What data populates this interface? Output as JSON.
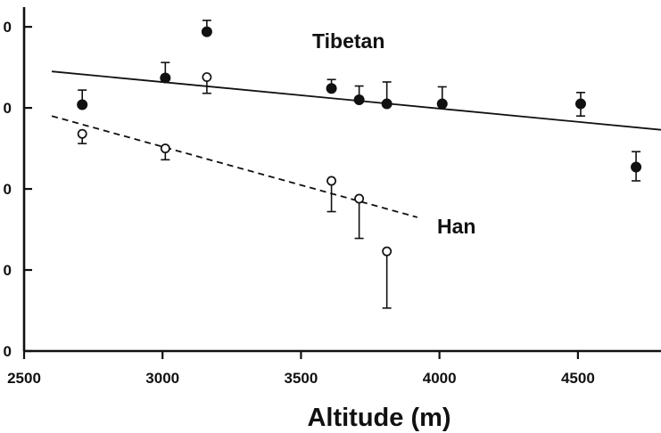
{
  "chart_data": {
    "type": "scatter",
    "title": "",
    "xlabel": "Altitude (m)",
    "ylabel": "",
    "xlim": [
      2500,
      4800
    ],
    "ylim": [
      0,
      4.15
    ],
    "x_ticks": [
      {
        "value": 2500,
        "label": "2500"
      },
      {
        "value": 3000,
        "label": "3000"
      },
      {
        "value": 3500,
        "label": "3500"
      },
      {
        "value": 4000,
        "label": "4000"
      },
      {
        "value": 4500,
        "label": "4500"
      }
    ],
    "y_ticks": [
      {
        "value": 0,
        "label": "0"
      },
      {
        "value": 1,
        "label": "0"
      },
      {
        "value": 2,
        "label": "0"
      },
      {
        "value": 3,
        "label": "0"
      },
      {
        "value": 4,
        "label": "0"
      }
    ],
    "grid": false,
    "series": [
      {
        "name": "Tibetan",
        "marker": "filled-circle",
        "color": "#111111",
        "points": [
          {
            "x": 2710,
            "y": 3.04,
            "err_up": 0.18,
            "err_down": 0
          },
          {
            "x": 3010,
            "y": 3.37,
            "err_up": 0.19,
            "err_down": 0
          },
          {
            "x": 3160,
            "y": 3.94,
            "err_up": 0.14,
            "err_down": 0
          },
          {
            "x": 3610,
            "y": 3.24,
            "err_up": 0.11,
            "err_down": 0
          },
          {
            "x": 3710,
            "y": 3.1,
            "err_up": 0.17,
            "err_down": 0
          },
          {
            "x": 3810,
            "y": 3.05,
            "err_up": 0.27,
            "err_down": 0
          },
          {
            "x": 4010,
            "y": 3.05,
            "err_up": 0.21,
            "err_down": 0
          },
          {
            "x": 4510,
            "y": 3.05,
            "err_up": 0.14,
            "err_down": 0.15
          },
          {
            "x": 4710,
            "y": 2.27,
            "err_up": 0.19,
            "err_down": 0.17
          }
        ],
        "trend": {
          "style": "solid",
          "x": [
            2600,
            4800
          ],
          "y": [
            3.45,
            2.73
          ]
        }
      },
      {
        "name": "Han",
        "marker": "open-circle",
        "color": "#111111",
        "points": [
          {
            "x": 2710,
            "y": 2.68,
            "err_up": 0,
            "err_down": 0.12
          },
          {
            "x": 3010,
            "y": 2.5,
            "err_up": 0,
            "err_down": 0.14
          },
          {
            "x": 3160,
            "y": 3.38,
            "err_up": 0,
            "err_down": 0.2
          },
          {
            "x": 3610,
            "y": 2.1,
            "err_up": 0,
            "err_down": 0.38
          },
          {
            "x": 3710,
            "y": 1.88,
            "err_up": 0,
            "err_down": 0.49
          },
          {
            "x": 3810,
            "y": 1.23,
            "err_up": 0,
            "err_down": 0.7
          }
        ],
        "trend": {
          "style": "dashed",
          "x": [
            2600,
            3920
          ],
          "y": [
            2.9,
            1.65
          ]
        }
      }
    ]
  }
}
